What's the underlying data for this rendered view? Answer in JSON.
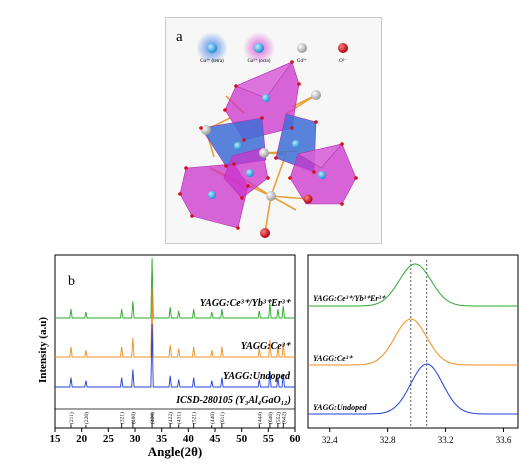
{
  "panel_a": {
    "label": "a",
    "legend": [
      {
        "text": "Ga³⁺ (tetra)",
        "color": "#1fa3e8"
      },
      {
        "text": "Ga³⁺ (octa)",
        "color": "#5fc7ee"
      },
      {
        "text": "Gd³⁺",
        "color": "#e6e6e6"
      },
      {
        "text": "O²⁻",
        "color": "#d0101a"
      }
    ],
    "colors": {
      "octahedra": "#cc33cc",
      "tetrahedra": "#3d6fd6",
      "bonds": "#e8a13a"
    }
  },
  "panel_b": {
    "label": "b",
    "ylabel": "Intensity (a.u)",
    "xlabel": "Angle(2θ)",
    "traces": [
      {
        "label": "YAGG:Ce³⁺/Yb³⁺Er³⁺",
        "color": "#2aa82a"
      },
      {
        "label": "YAGG:Ce³⁺",
        "color": "#f08c1e"
      },
      {
        "label": "YAGG:Undoped",
        "color": "#1f3fd6"
      }
    ],
    "reference_label": "ICSD-280105 (Y₃Al₄GaO₁₂)",
    "miller_indices": [
      "(211)",
      "(220)",
      "(321)",
      "(400)",
      "(420)",
      "(422)",
      "(431)",
      "(521)",
      "(440)",
      "(611)",
      "(444)",
      "(640)",
      "(552)",
      "(642)"
    ]
  },
  "panel_c": {
    "traces": [
      {
        "label": "YAGG:Ce³⁺/Yb³⁺Er³⁺",
        "color": "#2aa82a"
      },
      {
        "label": "YAGG:Ce³⁺",
        "color": "#f08c1e"
      },
      {
        "label": "YAGG:Undoped",
        "color": "#1f3fd6"
      }
    ]
  },
  "chart_data": [
    {
      "type": "line",
      "xlabel": "Angle(2θ)",
      "ylabel": "Intensity (a.u)",
      "xlim": [
        15,
        60
      ],
      "xticks": [
        15,
        20,
        25,
        30,
        35,
        40,
        45,
        50,
        55,
        60
      ],
      "peaks_x": [
        18.0,
        20.8,
        27.5,
        29.6,
        33.2,
        36.6,
        38.2,
        41.0,
        44.4,
        46.3,
        53.3,
        55.3,
        56.8,
        57.8
      ],
      "reference_peaks": [
        {
          "hkl": "(211)",
          "x": 18.0,
          "h": 0.25
        },
        {
          "hkl": "(220)",
          "x": 20.8,
          "h": 0.2
        },
        {
          "hkl": "(321)",
          "x": 27.5,
          "h": 0.3
        },
        {
          "hkl": "(400)",
          "x": 29.6,
          "h": 0.45
        },
        {
          "hkl": "(420)",
          "x": 33.2,
          "h": 1.0
        },
        {
          "hkl": "(422)",
          "x": 36.6,
          "h": 0.3
        },
        {
          "hkl": "(431)",
          "x": 38.2,
          "h": 0.25
        },
        {
          "hkl": "(521)",
          "x": 41.0,
          "h": 0.3
        },
        {
          "hkl": "(440)",
          "x": 44.4,
          "h": 0.2
        },
        {
          "hkl": "(611)",
          "x": 46.3,
          "h": 0.3
        },
        {
          "hkl": "(444)",
          "x": 53.3,
          "h": 0.25
        },
        {
          "hkl": "(640)",
          "x": 55.3,
          "h": 0.35
        },
        {
          "hkl": "(552)",
          "x": 56.8,
          "h": 0.3
        },
        {
          "hkl": "(642)",
          "x": 57.8,
          "h": 0.35
        }
      ],
      "series": [
        {
          "name": "YAGG:Ce³⁺/Yb³⁺Er³⁺",
          "relative_heights": [
            0.15,
            0.1,
            0.15,
            0.28,
            1.0,
            0.18,
            0.12,
            0.15,
            0.1,
            0.15,
            0.12,
            0.25,
            0.15,
            0.2
          ]
        },
        {
          "name": "YAGG:Ce³⁺",
          "relative_heights": [
            0.15,
            0.1,
            0.15,
            0.28,
            1.0,
            0.18,
            0.12,
            0.15,
            0.1,
            0.15,
            0.12,
            0.25,
            0.15,
            0.2
          ]
        },
        {
          "name": "YAGG:Undoped",
          "relative_heights": [
            0.15,
            0.1,
            0.15,
            0.28,
            1.0,
            0.18,
            0.12,
            0.15,
            0.1,
            0.15,
            0.12,
            0.25,
            0.15,
            0.2
          ]
        }
      ]
    },
    {
      "type": "line",
      "xlim": [
        32.25,
        33.7
      ],
      "xticks": [
        32.4,
        32.8,
        33.2,
        33.6
      ],
      "reference_lines_x": [
        32.96,
        33.07
      ],
      "series": [
        {
          "name": "YAGG:Ce³⁺/Yb³⁺Er³⁺",
          "peak_x": 32.99
        },
        {
          "name": "YAGG:Ce³⁺",
          "peak_x": 32.96
        },
        {
          "name": "YAGG:Undoped",
          "peak_x": 33.07
        }
      ]
    }
  ]
}
